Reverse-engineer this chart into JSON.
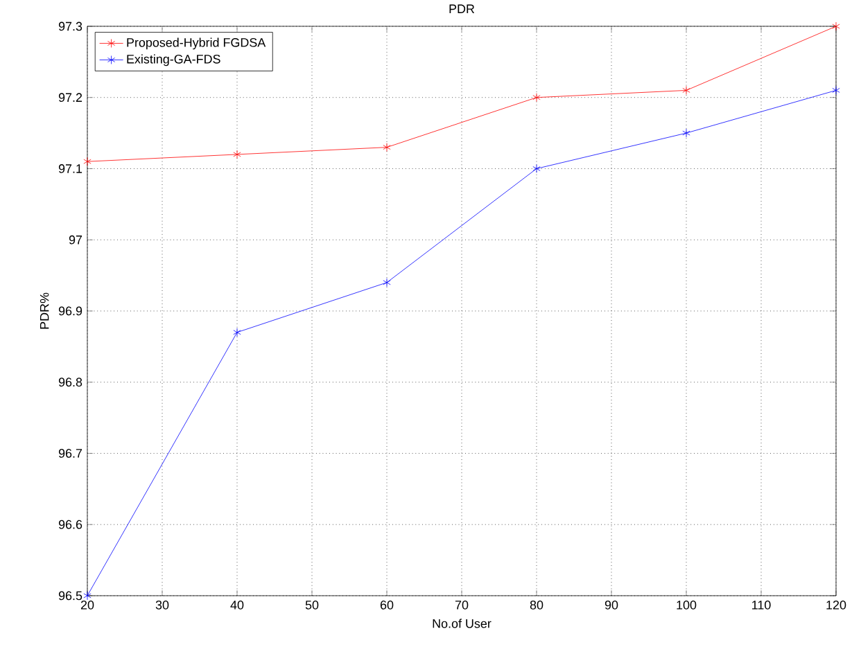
{
  "chart_data": {
    "type": "line",
    "title": "PDR",
    "xlabel": "No.of User",
    "ylabel": "PDR%",
    "x": [
      20,
      40,
      60,
      80,
      100,
      120
    ],
    "series": [
      {
        "name": "Proposed-Hybrid FGDSA",
        "color": "#ff0000",
        "values": [
          97.11,
          97.12,
          97.13,
          97.2,
          97.21,
          97.3
        ]
      },
      {
        "name": "Existing-GA-FDS",
        "color": "#0000ff",
        "values": [
          96.5,
          96.87,
          96.94,
          97.1,
          97.15,
          97.21
        ]
      }
    ],
    "xlim": [
      20,
      120
    ],
    "ylim": [
      96.5,
      97.3
    ],
    "xticks": [
      20,
      30,
      40,
      50,
      60,
      70,
      80,
      90,
      100,
      110,
      120
    ],
    "yticks": [
      96.5,
      96.6,
      96.7,
      96.8,
      96.9,
      97,
      97.1,
      97.2,
      97.3
    ],
    "grid": true,
    "legend": "top left",
    "marker": "cross",
    "line_style": "solid"
  }
}
